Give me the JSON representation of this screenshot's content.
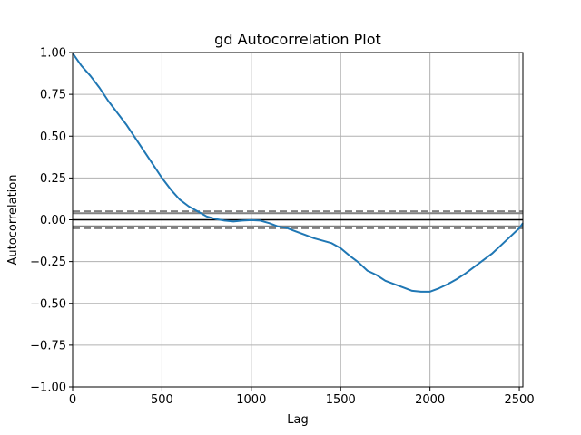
{
  "chart_data": {
    "type": "line",
    "title": "gd Autocorrelation Plot",
    "xlabel": "Lag",
    "ylabel": "Autocorrelation",
    "xlim": [
      0,
      2520
    ],
    "ylim": [
      -1.0,
      1.0
    ],
    "grid": true,
    "x_ticks": [
      0,
      500,
      1000,
      1500,
      2000,
      2500
    ],
    "x_tick_labels": [
      "0",
      "500",
      "1000",
      "1500",
      "2000",
      "2500"
    ],
    "y_ticks": [
      1.0,
      0.75,
      0.5,
      0.25,
      0.0,
      -0.25,
      -0.5,
      -0.75,
      -1.0
    ],
    "y_tick_labels": [
      "1.00",
      "0.75",
      "0.50",
      "0.25",
      "0.00",
      "−0.25",
      "−0.50",
      "−0.75",
      "−1.00"
    ],
    "reference_lines": {
      "zero": 0.0,
      "confidence_95": 0.039,
      "confidence_99": 0.051
    },
    "colors": {
      "series": "#1f77b4",
      "zero_line": "#000000",
      "confidence_lines": "#808080",
      "grid": "#b0b0b0"
    },
    "series": [
      {
        "x": [
          1,
          50,
          100,
          150,
          200,
          250,
          300,
          350,
          400,
          450,
          500,
          550,
          600,
          650,
          700,
          750,
          800,
          850,
          900,
          950,
          1000,
          1050,
          1100,
          1150,
          1200,
          1250,
          1300,
          1350,
          1400,
          1450,
          1500,
          1550,
          1600,
          1650,
          1700,
          1750,
          1800,
          1850,
          1900,
          1950,
          2000,
          2050,
          2100,
          2150,
          2200,
          2250,
          2300,
          2350,
          2400,
          2450,
          2500,
          2520
        ],
        "values": [
          0.995,
          0.92,
          0.86,
          0.79,
          0.71,
          0.64,
          0.57,
          0.49,
          0.41,
          0.33,
          0.25,
          0.18,
          0.12,
          0.08,
          0.05,
          0.02,
          0.005,
          -0.005,
          -0.01,
          -0.005,
          -0.002,
          -0.005,
          -0.02,
          -0.04,
          -0.05,
          -0.07,
          -0.09,
          -0.11,
          -0.125,
          -0.14,
          -0.17,
          -0.215,
          -0.255,
          -0.305,
          -0.33,
          -0.365,
          -0.385,
          -0.405,
          -0.425,
          -0.43,
          -0.43,
          -0.41,
          -0.385,
          -0.355,
          -0.32,
          -0.28,
          -0.24,
          -0.2,
          -0.15,
          -0.1,
          -0.05,
          -0.02
        ]
      }
    ]
  }
}
